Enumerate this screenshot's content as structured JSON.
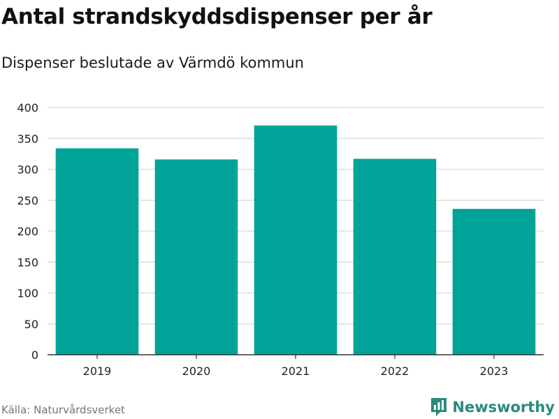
{
  "title": "Antal strandskyddsdispenser per år",
  "subtitle": "Dispenser beslutade av Värmdö kommun",
  "source": "Källa: Naturvårdsverket",
  "brand": {
    "name": "Newsworthy",
    "icon": "newsworthy-logo-icon",
    "color": "#2a8a7e"
  },
  "colors": {
    "bar": "#00a398",
    "grid": "#dddddd",
    "axis": "#333333"
  },
  "chart_data": {
    "type": "bar",
    "categories": [
      "2019",
      "2020",
      "2021",
      "2022",
      "2023"
    ],
    "values": [
      334,
      316,
      371,
      317,
      236
    ],
    "title": "Antal strandskyddsdispenser per år",
    "subtitle": "Dispenser beslutade av Värmdö kommun",
    "xlabel": "",
    "ylabel": "",
    "ylim": [
      0,
      400
    ],
    "yticks": [
      0,
      50,
      100,
      150,
      200,
      250,
      300,
      350,
      400
    ],
    "grid": true,
    "legend": "none"
  }
}
